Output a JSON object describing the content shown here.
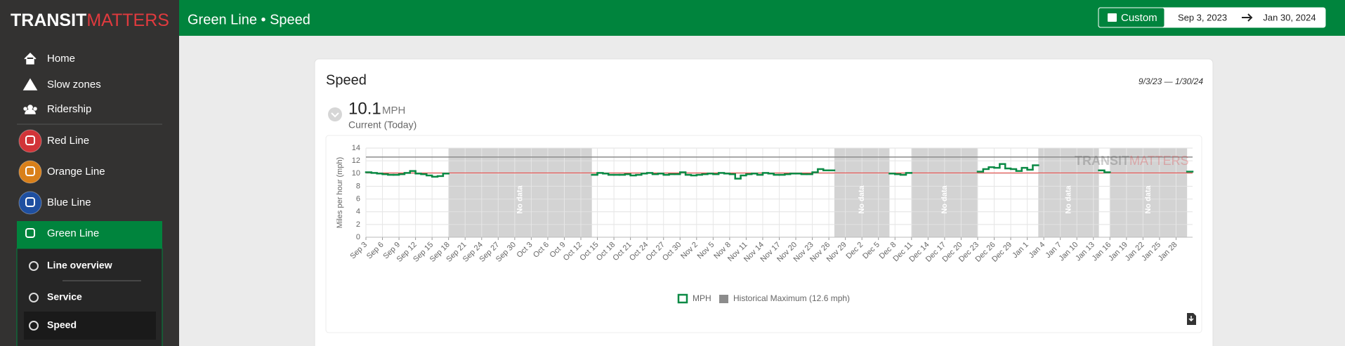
{
  "sidebar": {
    "logo": [
      "TRANSIT",
      "MATTERS"
    ],
    "nav": [
      "Home",
      "Slow zones",
      "Ridership"
    ],
    "lines": [
      {
        "name": "Red Line",
        "color": "#d13438"
      },
      {
        "name": "Orange Line",
        "color": "#d9801a"
      },
      {
        "name": "Blue Line",
        "color": "#1e4fa0"
      },
      {
        "name": "Green Line",
        "color": "#00843d"
      }
    ],
    "subnav": [
      "Line overview",
      "Service",
      "Speed"
    ]
  },
  "header": {
    "title": "Green Line • Speed",
    "range_mode": "Custom",
    "start_date": "Sep 3, 2023",
    "end_date": "Jan 30, 2024"
  },
  "card": {
    "title": "Speed",
    "date_range": "9/3/23 — 1/30/24",
    "current_value": 10.1,
    "current_unit": "MPH",
    "current_caption": "Current (Today)"
  },
  "chart_data": {
    "type": "line",
    "y_label": "Miles per hour (mph)",
    "categories": [
      "Sep 3",
      null,
      null,
      "Sep 6",
      null,
      null,
      "Sep 9",
      null,
      null,
      "Sep 12",
      null,
      null,
      "Sep 15",
      null,
      null,
      "Sep 18",
      null,
      null,
      "Sep 21",
      null,
      null,
      "Sep 24",
      null,
      null,
      "Sep 27",
      null,
      null,
      "Sep 30",
      null,
      null,
      "Oct 3",
      null,
      null,
      "Oct 6",
      null,
      null,
      "Oct 9",
      null,
      null,
      "Oct 12",
      null,
      null,
      "Oct 15",
      null,
      null,
      "Oct 18",
      null,
      null,
      "Oct 21",
      null,
      null,
      "Oct 24",
      null,
      null,
      "Oct 27",
      null,
      null,
      "Oct 30",
      null,
      null,
      "Nov 2",
      null,
      null,
      "Nov 5",
      null,
      null,
      "Nov 8",
      null,
      null,
      "Nov 11",
      null,
      null,
      "Nov 14",
      null,
      null,
      "Nov 17",
      null,
      null,
      "Nov 20",
      null,
      null,
      "Nov 23",
      null,
      null,
      "Nov 26",
      null,
      null,
      "Nov 29",
      null,
      null,
      "Dec 2",
      null,
      null,
      "Dec 5",
      null,
      null,
      "Dec 8",
      null,
      null,
      "Dec 11",
      null,
      null,
      "Dec 14",
      null,
      null,
      "Dec 17",
      null,
      null,
      "Dec 20",
      null,
      null,
      "Dec 23",
      null,
      null,
      "Dec 26",
      null,
      null,
      "Dec 29",
      null,
      null,
      "Jan 1",
      null,
      null,
      "Jan 4",
      null,
      null,
      "Jan 7",
      null,
      null,
      "Jan 10",
      null,
      null,
      "Jan 13",
      null,
      null,
      "Jan 16",
      null,
      null,
      "Jan 19",
      null,
      null,
      "Jan 22",
      null,
      null,
      "Jan 25",
      null,
      null,
      "Jan 28",
      null,
      null
    ],
    "series": [
      {
        "name": "MPH",
        "color": "#0b8a45",
        "values": [
          10.2,
          10.1,
          10.0,
          9.9,
          9.8,
          9.8,
          9.9,
          10.1,
          10.4,
          10.0,
          9.9,
          9.7,
          9.5,
          9.6,
          10.0,
          null,
          null,
          null,
          null,
          null,
          null,
          null,
          null,
          null,
          null,
          null,
          null,
          null,
          null,
          null,
          null,
          null,
          null,
          null,
          null,
          null,
          null,
          null,
          null,
          null,
          null,
          9.8,
          10.1,
          10.0,
          9.8,
          9.8,
          9.8,
          9.9,
          9.7,
          9.8,
          10.0,
          10.1,
          9.9,
          10.0,
          9.8,
          9.9,
          9.9,
          10.2,
          9.8,
          9.7,
          9.8,
          9.9,
          10.0,
          9.9,
          10.1,
          10.0,
          9.9,
          9.2,
          9.7,
          9.9,
          10.0,
          9.8,
          10.1,
          10.0,
          9.8,
          9.8,
          9.9,
          10.0,
          10.0,
          9.9,
          9.9,
          10.2,
          10.7,
          10.5,
          10.5,
          null,
          null,
          null,
          null,
          null,
          null,
          null,
          null,
          null,
          null,
          10.0,
          9.9,
          9.8,
          10.1,
          null,
          null,
          null,
          null,
          null,
          null,
          null,
          null,
          null,
          null,
          null,
          null,
          10.3,
          10.7,
          11.0,
          10.9,
          11.5,
          10.8,
          10.7,
          10.4,
          10.9,
          10.6,
          11.3,
          null,
          null,
          null,
          null,
          null,
          null,
          null,
          null,
          null,
          null,
          null,
          10.5,
          10.2,
          null,
          null,
          null,
          null,
          null,
          null,
          null,
          null,
          null,
          null,
          null,
          null,
          null,
          null,
          10.3
        ]
      }
    ],
    "historical_max": {
      "name": "Historical Maximum (12.6 mph)",
      "value": 12.6,
      "color": "#8c8c8c"
    },
    "current_line_color": "#e53935",
    "annotations": [
      "No data",
      "No data",
      "No data",
      "No data",
      "No data"
    ],
    "watermark": [
      "TRANSIT",
      "MATTERS"
    ],
    "ylim": [
      0,
      14
    ],
    "yticks": [
      0,
      2,
      4,
      6,
      8,
      10,
      12,
      14
    ],
    "grid": true,
    "step": true
  }
}
